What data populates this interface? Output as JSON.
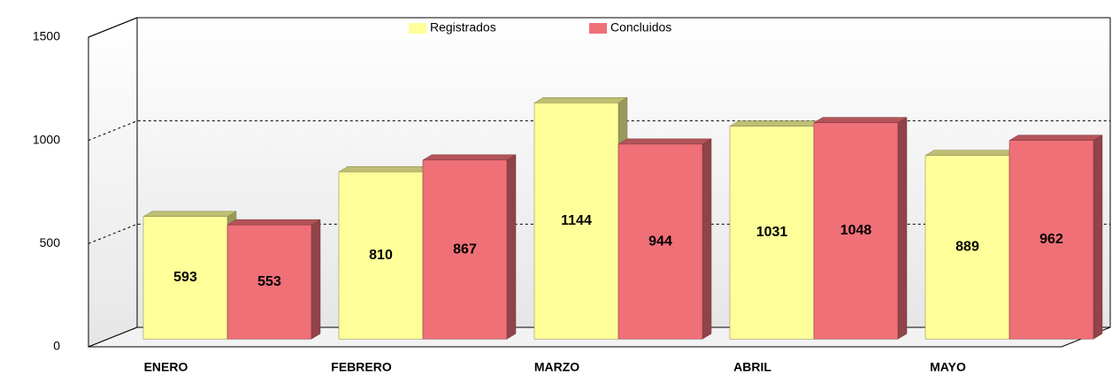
{
  "chart_data": {
    "type": "bar",
    "categories": [
      "ENERO",
      "FEBRERO",
      "MARZO",
      "ABRIL",
      "MAYO"
    ],
    "series": [
      {
        "name": "Registrados",
        "color": "#ffff99",
        "values": [
          593,
          810,
          1144,
          1031,
          889
        ]
      },
      {
        "name": "Concluidos",
        "color": "#f07078",
        "values": [
          553,
          867,
          944,
          1048,
          962
        ]
      }
    ],
    "ylim": [
      0,
      1500
    ],
    "yticks": [
      0,
      500,
      1000,
      1500
    ],
    "grid": true
  }
}
